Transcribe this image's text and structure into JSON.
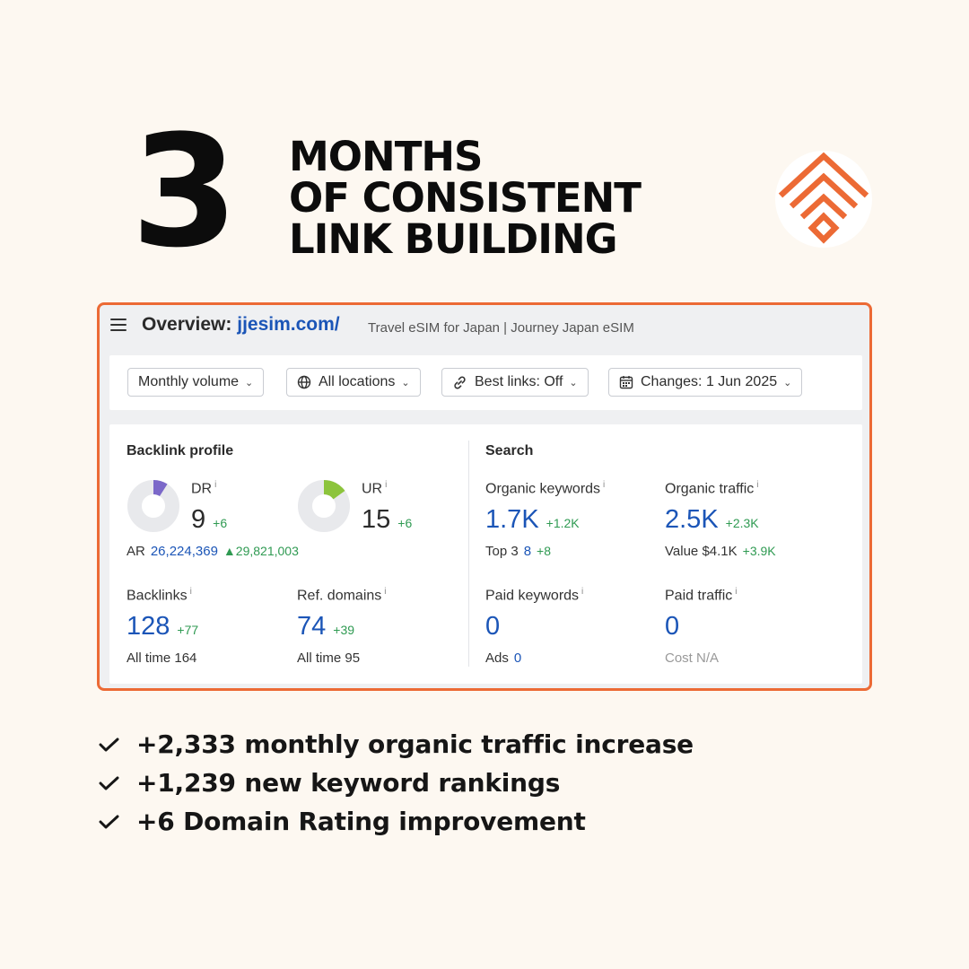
{
  "header": {
    "big_number": "3",
    "headline_lines": [
      "MONTHS",
      "OF CONSISTENT",
      "LINK BUILDING"
    ],
    "logo_icon": "nested-diamond-logo-icon",
    "brand_color": "#ec6a35"
  },
  "card": {
    "title_prefix": "Overview:",
    "domain": "jjesim.com/",
    "site_description": "Travel eSIM for Japan | Journey Japan eSIM",
    "filters": [
      {
        "label": "Monthly volume",
        "icon": ""
      },
      {
        "label": "All locations",
        "icon": "globe-icon"
      },
      {
        "label": "Best links: Off",
        "icon": "link-icon"
      },
      {
        "label": "Changes: 1 Jun 2025",
        "icon": "calendar-icon"
      }
    ],
    "backlink_profile": {
      "title": "Backlink profile",
      "dr": {
        "label": "DR",
        "value": "9",
        "delta": "+6",
        "fill": 0.09,
        "color": "#7b68c9"
      },
      "ur": {
        "label": "UR",
        "value": "15",
        "delta": "+6",
        "fill": 0.15,
        "color": "#8cc43c"
      },
      "ar": {
        "label": "AR",
        "value": "26,224,369",
        "delta": "29,821,003"
      },
      "backlinks": {
        "label": "Backlinks",
        "value": "128",
        "delta": "+77",
        "sub_label": "All time",
        "sub_value": "164"
      },
      "ref_domains": {
        "label": "Ref. domains",
        "value": "74",
        "delta": "+39",
        "sub_label": "All time",
        "sub_value": "95"
      }
    },
    "search": {
      "title": "Search",
      "organic_keywords": {
        "label": "Organic keywords",
        "value": "1.7K",
        "delta": "+1.2K",
        "sub_label": "Top 3",
        "sub_value": "8",
        "sub_delta": "+8"
      },
      "organic_traffic": {
        "label": "Organic traffic",
        "value": "2.5K",
        "delta": "+2.3K",
        "sub_label": "Value",
        "sub_value": "$4.1K",
        "sub_delta": "+3.9K"
      },
      "paid_keywords": {
        "label": "Paid keywords",
        "value": "0",
        "sub_label": "Ads",
        "sub_value": "0"
      },
      "paid_traffic": {
        "label": "Paid traffic",
        "value": "0",
        "sub_label": "Cost",
        "sub_value": "N/A"
      }
    }
  },
  "bullets": [
    "+2,333 monthly organic traffic increase",
    "+1,239 new keyword rankings",
    "+6 Domain Rating improvement"
  ],
  "info_marker": "i"
}
